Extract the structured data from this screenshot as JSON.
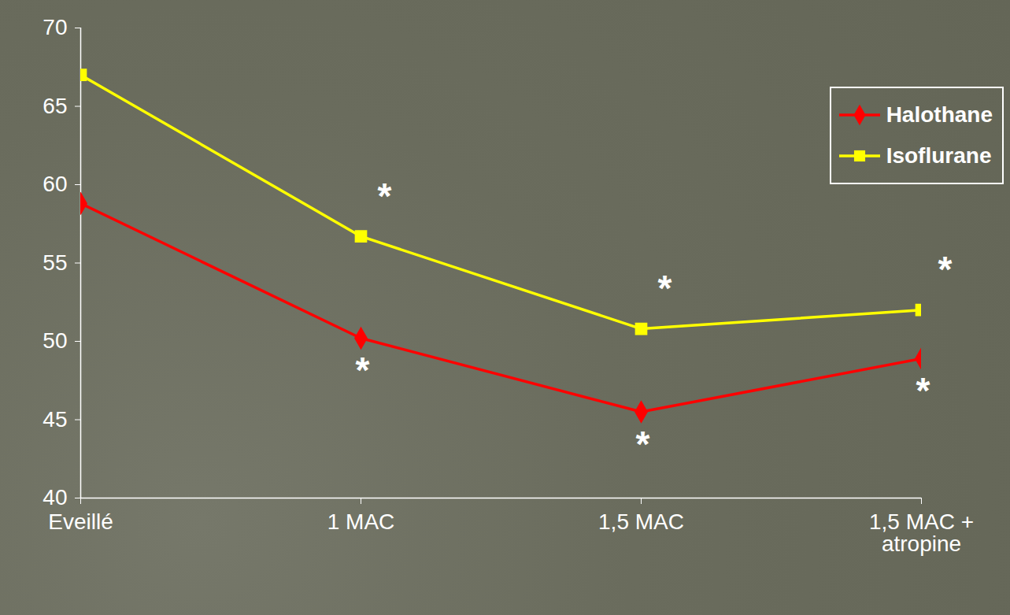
{
  "chart_data": {
    "type": "line",
    "categories": [
      "Eveillé",
      "1 MAC",
      "1,5 MAC",
      "1,5 MAC + atropine"
    ],
    "series": [
      {
        "name": "Halothane",
        "color": "#ff0000",
        "marker": "diamond",
        "values": [
          58.8,
          50.2,
          45.5,
          48.9
        ],
        "annotations": [
          null,
          "*",
          "*",
          "*"
        ]
      },
      {
        "name": "Isoflurane",
        "color": "#ffff00",
        "marker": "square",
        "values": [
          67,
          56.7,
          50.8,
          52
        ],
        "annotations": [
          null,
          "*",
          "*",
          "*"
        ]
      }
    ],
    "ylim": [
      40,
      70
    ],
    "yticks": [
      40,
      45,
      50,
      55,
      60,
      65,
      70
    ],
    "grid": false,
    "legend": "top-right"
  }
}
